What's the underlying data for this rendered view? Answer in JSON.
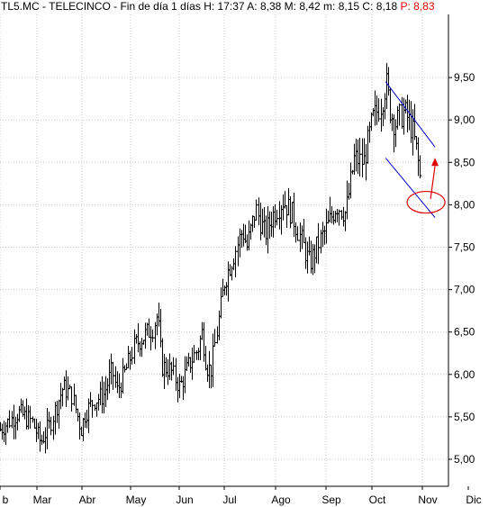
{
  "header": {
    "symbol_title": "TL5.MC - TELECINCO - Fin de día 1 días",
    "h_label": "H:",
    "h_value": "17:37",
    "a_label": "A:",
    "a_value": "8,38",
    "m_label": "M:",
    "m_value": "8,42",
    "min_label": "m:",
    "min_value": "8,15",
    "c_label": "C:",
    "c_value": "8,18",
    "p_label": "P:",
    "p_value": "8,83"
  },
  "chart_data": {
    "type": "bar",
    "subtype": "ohlc",
    "title": "",
    "xlabel": "",
    "ylabel": "",
    "ylim": [
      4.8,
      9.6
    ],
    "yticks": [
      "9,50",
      "9,00",
      "8,50",
      "8,00",
      "7,50",
      "7,00",
      "6,50",
      "6,00",
      "5,50",
      "5,00"
    ],
    "ytick_values": [
      9.5,
      9.0,
      8.5,
      8.0,
      7.5,
      7.0,
      6.5,
      6.0,
      5.5,
      5.0
    ],
    "xticks": [
      "b",
      "Mar",
      "Abr",
      "May",
      "Jun",
      "Jul",
      "Ago",
      "Sep",
      "Oct",
      "Nov",
      "Dic"
    ],
    "grid": true,
    "price_path": [
      [
        0,
        5.35
      ],
      [
        4,
        5.55
      ],
      [
        7,
        5.45
      ],
      [
        9,
        5.2
      ],
      [
        11,
        5.4
      ],
      [
        14,
        5.85
      ],
      [
        16,
        5.75
      ],
      [
        18,
        5.35
      ],
      [
        19,
        5.55
      ],
      [
        21,
        5.7
      ],
      [
        23,
        5.75
      ],
      [
        25,
        6.05
      ],
      [
        26,
        5.8
      ],
      [
        28,
        6.05
      ],
      [
        30,
        6.35
      ],
      [
        32,
        6.45
      ],
      [
        34,
        6.55
      ],
      [
        35,
        6.7
      ],
      [
        36,
        6.1
      ],
      [
        38,
        6.05
      ],
      [
        40,
        5.85
      ],
      [
        42,
        6.1
      ],
      [
        44,
        6.3
      ],
      [
        45,
        6.5
      ],
      [
        46,
        6.1
      ],
      [
        47,
        6.05
      ],
      [
        48,
        6.4
      ],
      [
        50,
        7.1
      ],
      [
        52,
        7.4
      ],
      [
        54,
        7.7
      ],
      [
        55,
        7.5
      ],
      [
        57,
        7.95
      ],
      [
        59,
        7.65
      ],
      [
        61,
        7.9
      ],
      [
        63,
        8.05
      ],
      [
        65,
        7.9
      ],
      [
        67,
        7.6
      ],
      [
        69,
        7.3
      ],
      [
        71,
        7.55
      ],
      [
        73,
        7.75
      ],
      [
        75,
        8.0
      ],
      [
        77,
        7.9
      ],
      [
        79,
        8.55
      ],
      [
        81,
        8.5
      ],
      [
        83,
        9.0
      ],
      [
        85,
        9.2
      ],
      [
        86,
        9.45
      ],
      [
        87,
        9.1
      ],
      [
        88,
        8.95
      ],
      [
        90,
        9.1
      ],
      [
        91,
        9.0
      ],
      [
        92,
        8.85
      ],
      [
        93,
        8.6
      ],
      [
        94,
        8.18
      ]
    ],
    "trend_channel": {
      "upper": [
        [
          86,
          9.45
        ],
        [
          97,
          8.68
        ]
      ],
      "lower": [
        [
          86,
          8.55
        ],
        [
          97,
          7.85
        ]
      ],
      "color": "#0000cc"
    },
    "annotations": [
      {
        "type": "ellipse",
        "center": [
          95,
          8.03
        ],
        "color": "#e00000"
      },
      {
        "type": "arrow",
        "from": [
          96,
          8.07
        ],
        "to": [
          97,
          8.5
        ],
        "color": "#e00000"
      }
    ],
    "colors": {
      "bars": "#000000",
      "grid": "#c8c8c8",
      "accent": "#e00000"
    }
  }
}
